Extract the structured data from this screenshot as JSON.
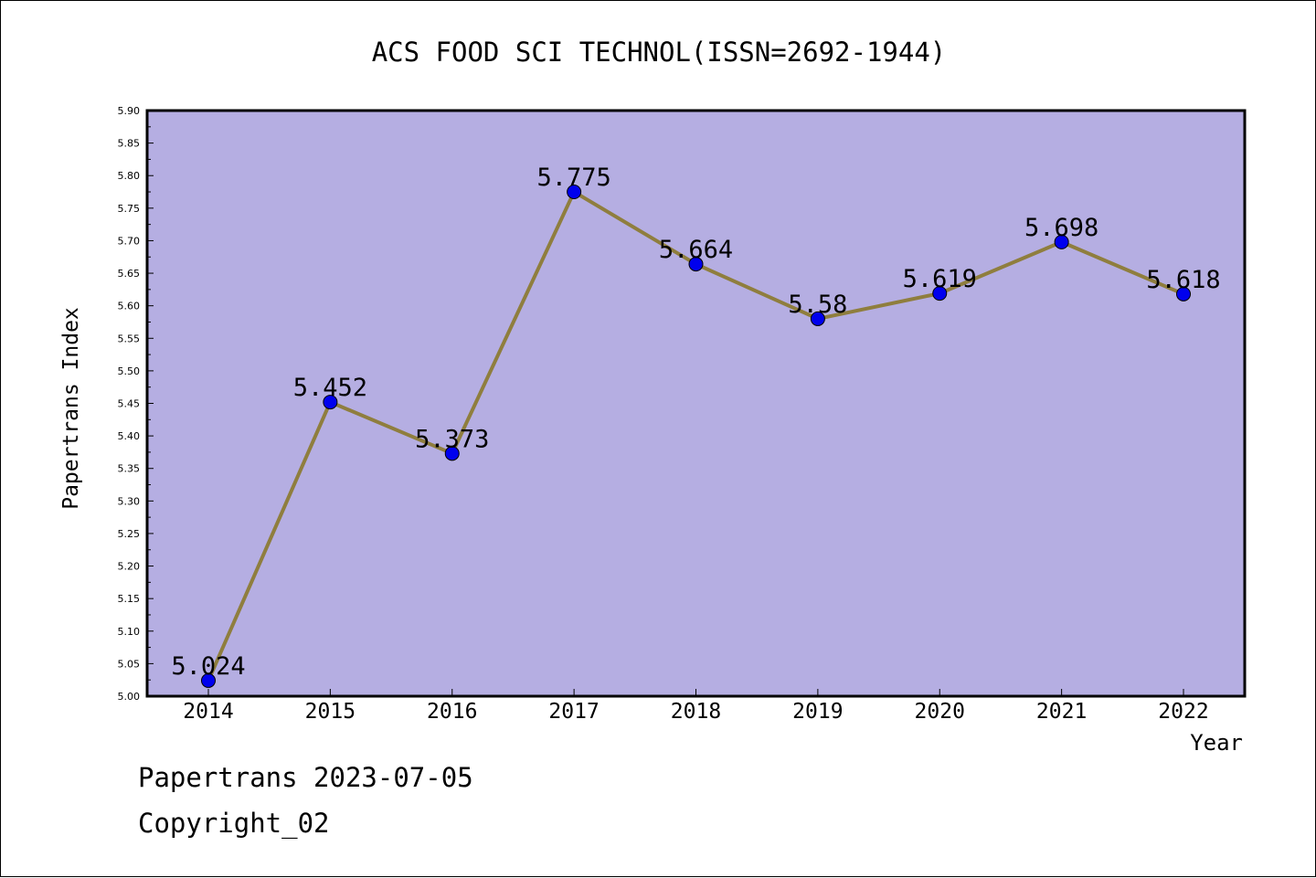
{
  "chart_data": {
    "type": "line",
    "title": "ACS FOOD SCI TECHNOL(ISSN=2692-1944)",
    "xlabel": "Year",
    "ylabel": "Papertrans Index",
    "categories": [
      "2014",
      "2015",
      "2016",
      "2017",
      "2018",
      "2019",
      "2020",
      "2021",
      "2022"
    ],
    "values": [
      5.024,
      5.452,
      5.373,
      5.775,
      5.664,
      5.58,
      5.619,
      5.698,
      5.618
    ],
    "data_labels": [
      "5.024",
      "5.452",
      "5.373",
      "5.775",
      "5.664",
      "5.58",
      "5.619",
      "5.698",
      "5.618"
    ],
    "ylim": [
      5.0,
      5.9
    ],
    "yticks": [
      "5.00",
      "5.05",
      "5.10",
      "5.15",
      "5.20",
      "5.25",
      "5.30",
      "5.35",
      "5.40",
      "5.45",
      "5.50",
      "5.55",
      "5.60",
      "5.65",
      "5.70",
      "5.75",
      "5.80",
      "5.85",
      "5.90"
    ],
    "grid": false,
    "colors": {
      "plot_background": "#b5aee2",
      "line": "#8f7e3e",
      "marker": "#0000ee"
    }
  },
  "footer": {
    "line1": "Papertrans 2023-07-05",
    "line2": "Copyright_02"
  }
}
